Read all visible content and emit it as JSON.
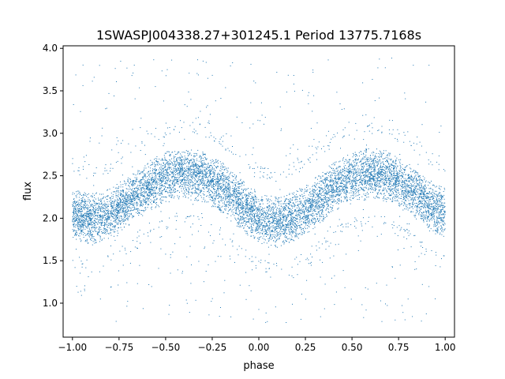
{
  "chart_data": {
    "type": "scatter",
    "title": "1SWASPJ004338.27+301245.1 Period 13775.7168s",
    "xlabel": "phase",
    "ylabel": "flux",
    "xlim": [
      -1.05,
      1.05
    ],
    "ylim": [
      0.6,
      4.03
    ],
    "xticks": [
      -1.0,
      -0.75,
      -0.5,
      -0.25,
      0.0,
      0.25,
      0.5,
      0.75,
      1.0
    ],
    "xtick_labels": [
      "−1.00",
      "−0.75",
      "−0.50",
      "−0.25",
      "0.00",
      "0.25",
      "0.50",
      "0.75",
      "1.00"
    ],
    "yticks": [
      1.0,
      1.5,
      2.0,
      2.5,
      3.0,
      3.5,
      4.0
    ],
    "ytick_labels": [
      "1.0",
      "1.5",
      "2.0",
      "2.5",
      "3.0",
      "3.5",
      "4.0"
    ],
    "grid": false,
    "point_color": "#1f77b4",
    "phase_range": [
      -1.0,
      1.0
    ],
    "light_curve_model": {
      "phase": [
        -1.0,
        -0.9,
        -0.8,
        -0.7,
        -0.6,
        -0.5,
        -0.4,
        -0.3,
        -0.2,
        -0.1,
        0.0,
        0.1,
        0.2,
        0.3,
        0.4,
        0.5,
        0.6,
        0.7,
        0.8,
        0.9,
        1.0
      ],
      "flux": [
        2.05,
        1.98,
        2.05,
        2.2,
        2.37,
        2.48,
        2.53,
        2.49,
        2.36,
        2.17,
        2.0,
        1.95,
        2.02,
        2.18,
        2.36,
        2.48,
        2.53,
        2.49,
        2.36,
        2.17,
        2.05
      ]
    },
    "scatter_core_sigma": 0.15,
    "outlier_flux_range": [
      0.75,
      3.9
    ]
  }
}
